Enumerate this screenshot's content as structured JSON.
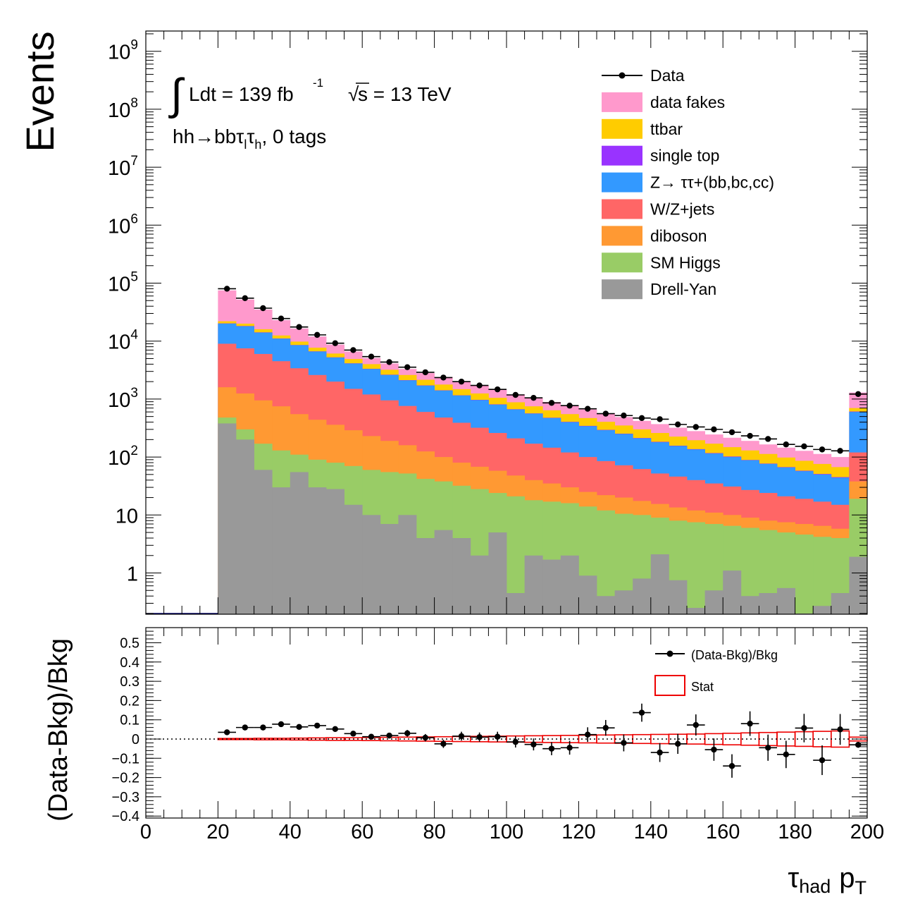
{
  "chart_data": [
    {
      "type": "bar",
      "subtype": "stacked-histogram-log",
      "ylabel": "Events",
      "yscale": "log",
      "ylim": [
        0.2,
        2000000000
      ],
      "xlim": [
        0,
        200
      ],
      "bin_width": 5,
      "bin_edges_start": 20,
      "y_tick_labels": [
        "1",
        "10",
        "10^2",
        "10^3",
        "10^4",
        "10^5",
        "10^6",
        "10^7",
        "10^8",
        "10^9"
      ],
      "annotations": {
        "lumi": "Ldt = 139 fb",
        "lumi_sup": "-1",
        "energy": "s = 13 TeV",
        "sqrt_symbol": "√",
        "integral_symbol": "∫",
        "channel": "hh→bbτ",
        "channel_sub1": "l",
        "channel_mid": "τ",
        "channel_sub2": "h",
        "channel_end": ", 0 tags"
      },
      "legend": [
        {
          "label": "Data",
          "kind": "marker",
          "color": "#000000"
        },
        {
          "label": "data fakes",
          "kind": "box",
          "color": "#ff99cc"
        },
        {
          "label": "ttbar",
          "kind": "box",
          "color": "#ffcc00"
        },
        {
          "label": "single top",
          "kind": "box",
          "color": "#9933ff"
        },
        {
          "label": "Z→ ττ+(bb,bc,cc)",
          "kind": "box",
          "color": "#3399ff"
        },
        {
          "label": "W/Z+jets",
          "kind": "box",
          "color": "#ff6666"
        },
        {
          "label": "diboson",
          "kind": "box",
          "color": "#ff9933"
        },
        {
          "label": "SM Higgs",
          "kind": "box",
          "color": "#99cc66"
        },
        {
          "label": "Drell-Yan",
          "kind": "box",
          "color": "#999999"
        }
      ],
      "series": [
        {
          "name": "Drell-Yan",
          "color": "#999999",
          "cumulative_top": [
            380,
            200,
            60,
            30,
            55,
            30,
            28,
            15,
            10,
            7,
            10,
            4,
            5.5,
            4,
            2,
            5,
            0.45,
            2,
            1.7,
            2,
            0.9,
            0.4,
            0.5,
            0.8,
            2.1,
            0.75,
            0.25,
            0.5,
            1.1,
            0.4,
            0.45,
            0.55,
            0.2,
            0.27,
            0.45,
            1.9
          ]
        },
        {
          "name": "SM Higgs",
          "color": "#99cc66",
          "cumulative_top": [
            480,
            300,
            170,
            130,
            110,
            90,
            80,
            70,
            60,
            55,
            52,
            42,
            38,
            32,
            28,
            24,
            21,
            18,
            17,
            16,
            14,
            12,
            10.5,
            10,
            9,
            8,
            7.5,
            7,
            6.5,
            6,
            5.5,
            5,
            4.6,
            4.2,
            4,
            19
          ]
        },
        {
          "name": "diboson",
          "color": "#ff9933",
          "cumulative_top": [
            1600,
            1250,
            950,
            750,
            550,
            440,
            360,
            290,
            230,
            190,
            160,
            125,
            100,
            80,
            68,
            58,
            48,
            40,
            35,
            30,
            25,
            22,
            20,
            17.5,
            15.5,
            13.5,
            12,
            11,
            10,
            9,
            8,
            7.5,
            7,
            6.5,
            5.8,
            38
          ]
        },
        {
          "name": "W/Z+jets",
          "color": "#ff6666",
          "cumulative_top": [
            9000,
            7500,
            6000,
            4500,
            3400,
            2600,
            2000,
            1500,
            1200,
            950,
            760,
            600,
            480,
            390,
            320,
            260,
            210,
            170,
            145,
            120,
            100,
            85,
            72,
            62,
            52,
            46,
            40,
            35,
            31,
            27,
            24,
            21,
            19,
            17,
            15,
            120
          ]
        },
        {
          "name": "Z→ ττ+(bb,bc,cc)",
          "color": "#3399ff",
          "cumulative_top": [
            20000,
            18000,
            14000,
            11000,
            8500,
            6600,
            5200,
            4100,
            3300,
            2600,
            2100,
            1700,
            1400,
            1150,
            960,
            800,
            660,
            560,
            470,
            400,
            340,
            290,
            250,
            210,
            180,
            155,
            135,
            115,
            100,
            88,
            76,
            66,
            57,
            50,
            44,
            600
          ]
        },
        {
          "name": "single top",
          "color": "#9933ff",
          "cumulative_top": [
            20200,
            18200,
            14150,
            11100,
            8570,
            6660,
            5250,
            4140,
            3330,
            2630,
            2120,
            1720,
            1415,
            1160,
            970,
            810,
            668,
            566,
            476,
            405,
            345,
            294,
            253,
            213,
            183,
            157,
            137,
            117,
            102,
            89,
            77,
            67,
            58,
            51,
            45,
            610
          ]
        },
        {
          "name": "ttbar",
          "color": "#ffcc00",
          "cumulative_top": [
            22000,
            20000,
            16000,
            12500,
            9800,
            7700,
            6100,
            4900,
            4000,
            3200,
            2600,
            2150,
            1780,
            1480,
            1250,
            1050,
            880,
            750,
            640,
            550,
            470,
            405,
            350,
            300,
            260,
            225,
            195,
            170,
            148,
            130,
            113,
            98,
            86,
            76,
            67,
            700
          ]
        },
        {
          "name": "data fakes",
          "color": "#ff99cc",
          "cumulative_top": [
            75000,
            52000,
            35000,
            23000,
            16500,
            12000,
            8700,
            6600,
            5100,
            4100,
            3300,
            2800,
            2400,
            2000,
            1700,
            1450,
            1200,
            1030,
            890,
            770,
            660,
            570,
            490,
            420,
            370,
            320,
            280,
            245,
            215,
            190,
            165,
            145,
            128,
            113,
            100,
            1300
          ]
        }
      ],
      "data": {
        "name": "Data",
        "values": [
          80000,
          55000,
          37000,
          24500,
          17500,
          12800,
          9200,
          7000,
          5400,
          4350,
          3550,
          2900,
          2350,
          2000,
          1720,
          1470,
          1180,
          1050,
          860,
          770,
          680,
          560,
          520,
          470,
          450,
          365,
          330,
          300,
          268,
          232,
          205,
          165,
          153,
          135,
          128,
          1220
        ]
      }
    },
    {
      "type": "scatter",
      "subtype": "ratio",
      "ylabel": "(Data-Bkg)/Bkg",
      "xlabel": "τ",
      "xlabel_sub": "had",
      "xlabel_main": "p",
      "xlabel_main_sub": "T",
      "xlim": [
        0,
        200
      ],
      "ylim": [
        -0.4,
        0.58
      ],
      "x_tick_labels": [
        "0",
        "20",
        "40",
        "60",
        "80",
        "100",
        "120",
        "140",
        "160",
        "180",
        "200"
      ],
      "y_tick_labels": [
        "−0.4",
        "−0.3",
        "−0.2",
        "−0.1",
        "0",
        "0.1",
        "0.2",
        "0.3",
        "0.4",
        "0.5"
      ],
      "legend": [
        {
          "label": "(Data-Bkg)/Bkg",
          "kind": "marker",
          "color": "#000000"
        },
        {
          "label": "Stat",
          "kind": "box-outline",
          "color": "#ee0000"
        }
      ],
      "x": [
        22.5,
        27.5,
        32.5,
        37.5,
        42.5,
        47.5,
        52.5,
        57.5,
        62.5,
        67.5,
        72.5,
        77.5,
        82.5,
        87.5,
        92.5,
        97.5,
        102.5,
        107.5,
        112.5,
        117.5,
        122.5,
        127.5,
        132.5,
        137.5,
        142.5,
        147.5,
        152.5,
        157.5,
        162.5,
        167.5,
        172.5,
        177.5,
        182.5,
        187.5,
        192.5,
        197.5
      ],
      "values": [
        0.035,
        0.06,
        0.06,
        0.077,
        0.063,
        0.07,
        0.052,
        0.028,
        0.012,
        0.018,
        0.03,
        0.007,
        -0.025,
        0.015,
        0.01,
        0.012,
        -0.015,
        -0.028,
        -0.05,
        -0.045,
        0.023,
        0.058,
        -0.02,
        0.137,
        -0.07,
        -0.025,
        0.073,
        -0.055,
        -0.14,
        0.08,
        -0.045,
        -0.08,
        0.057,
        -0.11,
        0.05,
        -0.03
      ],
      "errors": [
        0.005,
        0.005,
        0.006,
        0.007,
        0.008,
        0.009,
        0.011,
        0.012,
        0.014,
        0.015,
        0.017,
        0.019,
        0.021,
        0.023,
        0.024,
        0.026,
        0.029,
        0.031,
        0.034,
        0.036,
        0.038,
        0.041,
        0.044,
        0.047,
        0.049,
        0.052,
        0.055,
        0.058,
        0.061,
        0.064,
        0.068,
        0.071,
        0.074,
        0.077,
        0.08,
        0.015
      ],
      "stat_band": [
        0.003,
        0.003,
        0.004,
        0.004,
        0.005,
        0.006,
        0.007,
        0.007,
        0.008,
        0.009,
        0.01,
        0.011,
        0.012,
        0.013,
        0.014,
        0.015,
        0.016,
        0.017,
        0.018,
        0.019,
        0.02,
        0.021,
        0.022,
        0.023,
        0.024,
        0.025,
        0.026,
        0.028,
        0.03,
        0.032,
        0.034,
        0.036,
        0.038,
        0.04,
        0.042,
        0.01
      ],
      "reference_line": 0
    }
  ]
}
